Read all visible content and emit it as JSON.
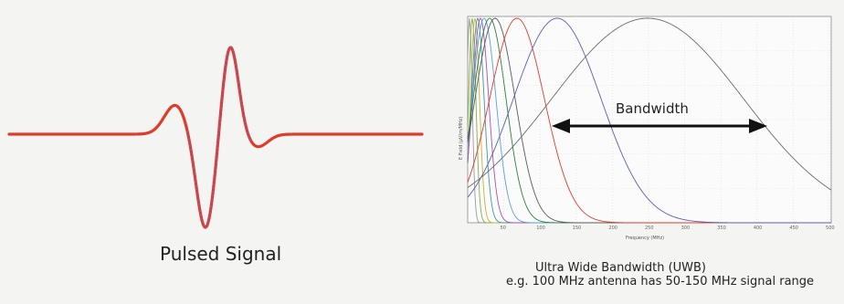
{
  "left": {
    "caption": "Pulsed Signal",
    "signal_color": "#e23a2a",
    "overlay_color": "#6a6fd1"
  },
  "right": {
    "bandwidth_label": "Bandwidth",
    "caption_line1": "Ultra Wide Bandwidth (UWB)",
    "caption_line2": "e.g. 100 MHz antenna has 50-150 MHz signal range",
    "ylabel": "E Field (µV/m/MHz)",
    "xlabel": "Frequency (MHz)",
    "xticks": [
      "50",
      "100",
      "150",
      "200",
      "250",
      "300",
      "350",
      "400",
      "450",
      "500"
    ],
    "curve_colors": [
      "#e23a2a",
      "#5560b5",
      "#6c6c6c"
    ],
    "arrow_color": "#111111"
  }
}
